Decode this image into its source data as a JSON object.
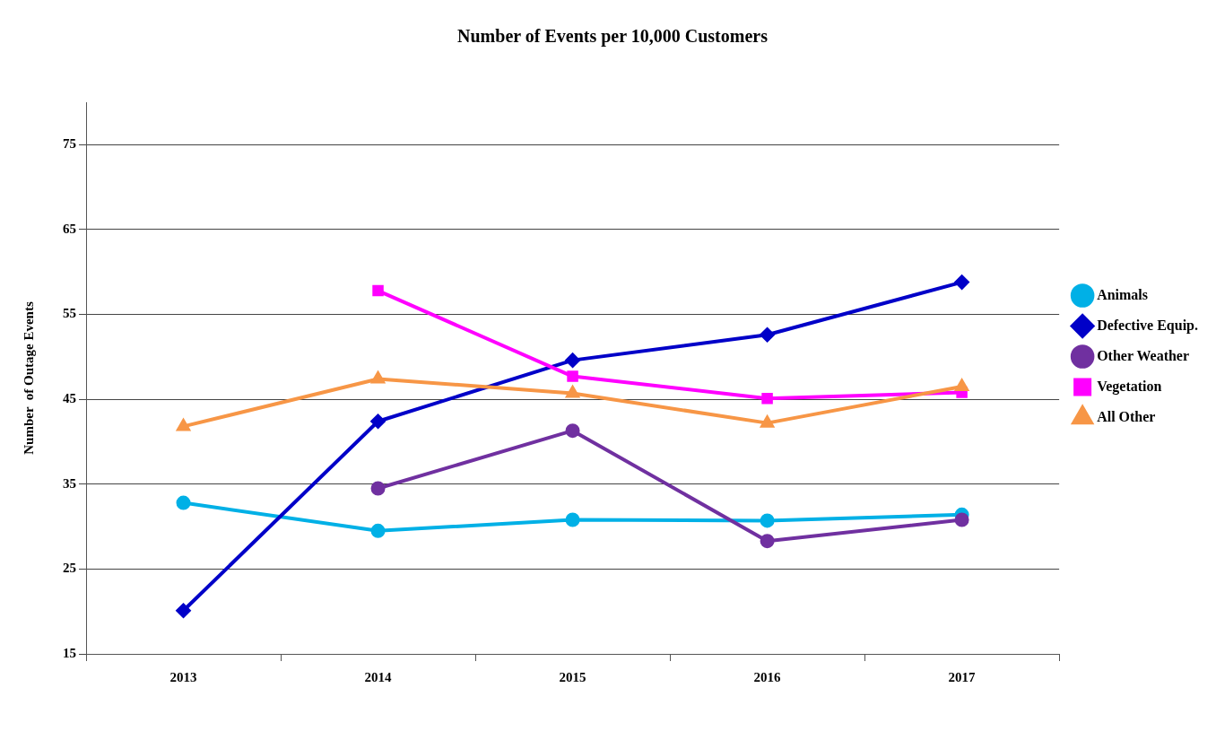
{
  "chart_data": {
    "type": "line",
    "title": "Number of Events per 10,000 Customers",
    "ylabel": "Number  of Outage Events",
    "categories": [
      "2013",
      "2014",
      "2015",
      "2016",
      "2017"
    ],
    "series": [
      {
        "name": "Animals",
        "color": "#00b0e6",
        "marker": "circle",
        "values": [
          32.8,
          29.5,
          30.8,
          30.7,
          31.4
        ]
      },
      {
        "name": "Defective Equip.",
        "color": "#0000c8",
        "marker": "diamond",
        "values": [
          20.1,
          42.4,
          49.6,
          52.6,
          58.8
        ]
      },
      {
        "name": "Other Weather",
        "color": "#7030a0",
        "marker": "circle",
        "values": [
          null,
          34.5,
          41.3,
          28.3,
          30.8
        ]
      },
      {
        "name": "Vegetation",
        "color": "#ff00ff",
        "marker": "square",
        "values": [
          null,
          57.8,
          47.7,
          45.1,
          45.8
        ]
      },
      {
        "name": "All Other",
        "color": "#f79646",
        "marker": "triangle",
        "values": [
          41.8,
          47.4,
          45.7,
          42.2,
          46.5
        ]
      }
    ],
    "ylim": [
      15,
      80
    ],
    "yticks": [
      15,
      25,
      35,
      45,
      55,
      65,
      75
    ],
    "grid": "y",
    "legend": "right"
  }
}
